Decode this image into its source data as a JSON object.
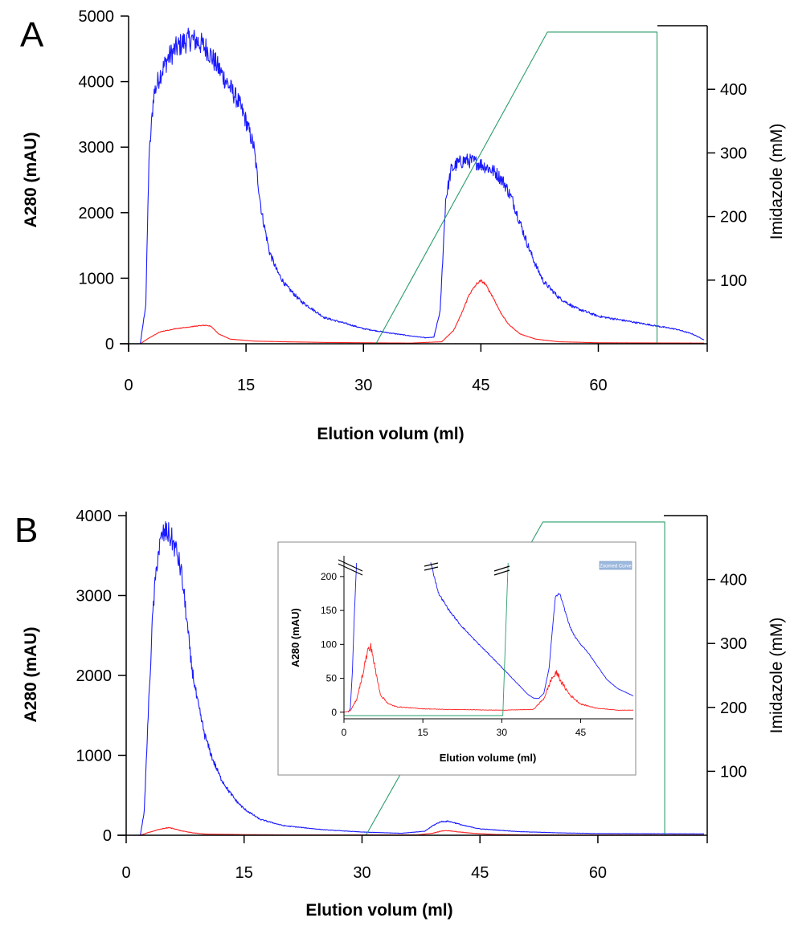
{
  "panel_labels": [
    "A",
    "B"
  ],
  "colors": {
    "a280": "#1a1aff",
    "second_trace": "#ff2020",
    "imidazole": "#2a9d6a",
    "axis": "#000000"
  },
  "chart_data": [
    {
      "type": "line",
      "panel": "A",
      "xlabel": "Elution volum (ml)",
      "ylabel": "A280 (mAU)",
      "y2label": "Imidazole (mM)",
      "xticks": [
        "0",
        "15",
        "30",
        "45",
        "60"
      ],
      "yticks": [
        "0",
        "1000",
        "2000",
        "3000",
        "4000",
        "5000"
      ],
      "y2ticks": [
        "100",
        "200",
        "300",
        "400"
      ],
      "xlim": [
        0,
        73.5
      ],
      "ylim": [
        0,
        5000
      ],
      "y2lim": [
        0,
        500
      ],
      "grid": false,
      "series": [
        {
          "axis": "left",
          "noise": 0.04,
          "x": [
            0,
            1.5,
            2.2,
            2.6,
            3.2,
            4,
            5,
            6,
            7,
            8,
            9,
            10,
            11,
            12,
            13,
            14,
            15,
            16,
            17,
            18,
            19,
            20,
            22,
            25,
            28,
            30,
            33,
            36,
            38,
            39,
            39.8,
            40.5,
            41.2,
            42,
            43,
            44,
            45,
            46,
            47,
            48,
            49,
            50,
            51,
            52,
            53,
            55,
            57,
            60,
            65,
            70,
            72,
            73.5
          ],
          "y": [
            0,
            0,
            600,
            2800,
            3800,
            4100,
            4350,
            4500,
            4600,
            4650,
            4600,
            4500,
            4300,
            4100,
            3900,
            3700,
            3400,
            3000,
            2000,
            1400,
            1100,
            900,
            650,
            400,
            300,
            230,
            170,
            120,
            90,
            100,
            500,
            2200,
            2650,
            2750,
            2800,
            2780,
            2740,
            2680,
            2600,
            2450,
            2200,
            1850,
            1500,
            1200,
            950,
            700,
            550,
            420,
            320,
            220,
            150,
            60
          ]
        },
        {
          "axis": "left",
          "noise": 0.02,
          "x": [
            0,
            1.5,
            2.5,
            4,
            6,
            8,
            9.5,
            10.5,
            11.5,
            13,
            16,
            20,
            25,
            30,
            36,
            40,
            41.5,
            42.5,
            43.5,
            44.5,
            45,
            45.5,
            46.5,
            47.5,
            48.5,
            50,
            52,
            55,
            60,
            73.5
          ],
          "y": [
            0,
            0,
            80,
            180,
            230,
            260,
            280,
            270,
            150,
            70,
            40,
            30,
            20,
            15,
            10,
            30,
            200,
            450,
            750,
            920,
            960,
            920,
            720,
            480,
            300,
            150,
            70,
            30,
            15,
            10
          ]
        },
        {
          "axis": "right",
          "noise": 0,
          "x": [
            0,
            31.6,
            53.5,
            67.5,
            67.5,
            73.5
          ],
          "y": [
            0,
            0,
            490,
            490,
            0,
            0
          ]
        }
      ]
    },
    {
      "type": "line",
      "panel": "B",
      "xlabel": "Elution volum (ml)",
      "ylabel": "A280 (mAU)",
      "y2label": "Imidazole (mM)",
      "xticks": [
        "0",
        "15",
        "30",
        "45",
        "60"
      ],
      "yticks": [
        "0",
        "1000",
        "2000",
        "3000",
        "4000"
      ],
      "y2ticks": [
        "100",
        "200",
        "300",
        "400"
      ],
      "xlim": [
        0,
        73.5
      ],
      "ylim": [
        0,
        4000
      ],
      "y2lim": [
        0,
        500
      ],
      "grid": false,
      "series": [
        {
          "axis": "left",
          "noise": 0.04,
          "x": [
            0,
            1.8,
            2.3,
            2.8,
            3.4,
            4,
            4.6,
            5.2,
            5.8,
            6.4,
            7,
            7.6,
            8.2,
            9,
            10,
            11,
            12,
            13,
            14,
            15,
            17,
            20,
            25,
            30,
            35,
            38,
            39,
            40,
            41,
            42,
            43,
            45,
            50,
            55,
            60,
            73.5
          ],
          "y": [
            0,
            0,
            300,
            1500,
            2800,
            3500,
            3750,
            3800,
            3700,
            3550,
            3300,
            2800,
            2200,
            1700,
            1250,
            950,
            720,
            560,
            430,
            330,
            200,
            120,
            70,
            40,
            25,
            50,
            120,
            170,
            175,
            150,
            120,
            80,
            45,
            30,
            22,
            18
          ]
        },
        {
          "axis": "left",
          "noise": 0.05,
          "x": [
            0,
            1.8,
            3,
            4.5,
            5.4,
            6.2,
            7,
            8.5,
            10,
            15,
            20,
            30,
            37,
            39,
            40.2,
            41,
            42,
            44,
            47,
            50,
            55,
            73.5
          ],
          "y": [
            0,
            0,
            40,
            80,
            95,
            80,
            55,
            30,
            15,
            8,
            5,
            4,
            5,
            25,
            55,
            58,
            45,
            25,
            10,
            6,
            4,
            3
          ]
        },
        {
          "axis": "right",
          "noise": 0,
          "x": [
            0,
            30.5,
            53,
            68.5,
            68.5,
            73.5
          ],
          "y": [
            0,
            0,
            490,
            490,
            0,
            0
          ]
        }
      ]
    },
    {
      "type": "line",
      "panel": "B-inset",
      "xlabel": "Elution volume (ml)",
      "ylabel": "A280 (mAU)",
      "xticks": [
        "0",
        "15",
        "30",
        "45"
      ],
      "yticks": [
        "0",
        "50",
        "100",
        "150",
        "200"
      ],
      "xlim": [
        0,
        55
      ],
      "ylim": [
        -5,
        220
      ],
      "badge": "Zoomed Curve",
      "grid": false,
      "series": [
        {
          "axis": "left",
          "noise": 0.01,
          "x": [
            0.8,
            1.2,
            1.6,
            2.0,
            2.4
          ],
          "y": [
            0,
            5,
            60,
            150,
            220
          ]
        },
        {
          "axis": "left",
          "noise": 0.01,
          "x": [
            16.5,
            18,
            20,
            22,
            25,
            28,
            30,
            32,
            33.5,
            35,
            36,
            37,
            38,
            39,
            39.6,
            40.2,
            41,
            42,
            43,
            44,
            45,
            46,
            48,
            50,
            52,
            55
          ],
          "y": [
            220,
            175,
            150,
            130,
            105,
            82,
            66,
            50,
            38,
            26,
            21,
            20,
            28,
            65,
            120,
            170,
            175,
            150,
            125,
            110,
            100,
            92,
            70,
            48,
            35,
            24
          ]
        },
        {
          "axis": "left",
          "noise": 0.08,
          "x": [
            0,
            1.2,
            2.5,
            3.5,
            4.5,
            5.2,
            6,
            7,
            8.5,
            10,
            15,
            20,
            30,
            36,
            38,
            39.5,
            40.5,
            41.5,
            43,
            45,
            48,
            52,
            55
          ],
          "y": [
            0,
            2,
            20,
            55,
            90,
            96,
            60,
            25,
            12,
            8,
            5,
            4,
            3,
            4,
            20,
            50,
            58,
            42,
            25,
            12,
            6,
            3,
            3
          ]
        },
        {
          "axis": "left",
          "noise": 0,
          "x": [
            0,
            30.2,
            31.2
          ],
          "y": [
            -5,
            -5,
            220
          ]
        }
      ]
    }
  ]
}
